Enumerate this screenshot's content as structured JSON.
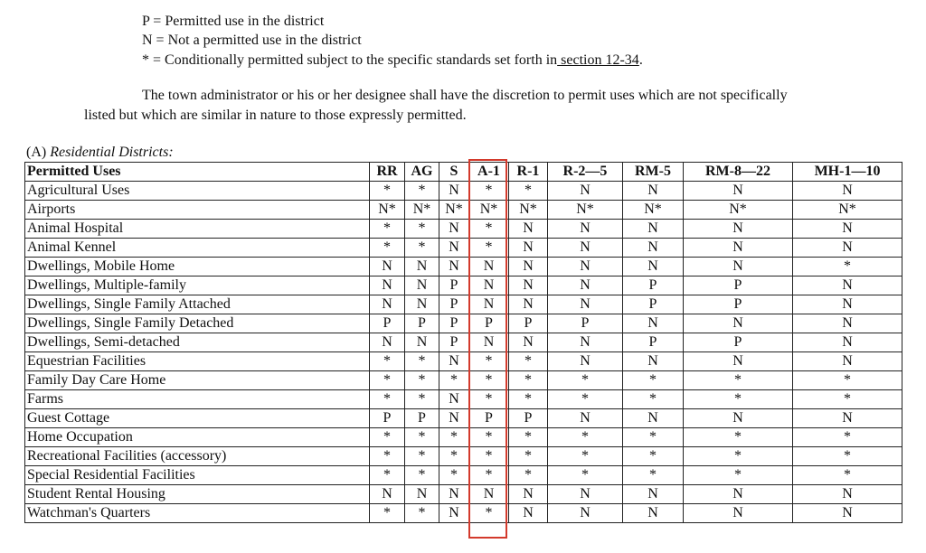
{
  "legend": [
    {
      "text": "P = Permitted use in the district"
    },
    {
      "text": "N = Not a permitted use in the district"
    },
    {
      "text": "* = Conditionally permitted subject to the specific standards set forth in",
      "link": " section 12-34",
      "tail": "."
    }
  ],
  "paragraph": {
    "line1": "The town administrator or his or her designee shall have the discretion to permit uses which are not specifically",
    "line2": "listed but which are similar in nature to those expressly permitted."
  },
  "section": {
    "prefix": "(A) ",
    "title": "Residential Districts:"
  },
  "table": {
    "headers": [
      "Permitted Uses",
      "RR",
      "AG",
      "S",
      "A-1",
      "R-1",
      "R-2—5",
      "RM-5",
      "RM-8—22",
      "MH-1—10"
    ],
    "highlight_column": "A-1",
    "highlight_color": "#d33a2c",
    "rows": [
      [
        "Agricultural Uses",
        "*",
        "*",
        "N",
        "*",
        "*",
        "N",
        "N",
        "N",
        "N"
      ],
      [
        "Airports",
        "N*",
        "N*",
        "N*",
        "N*",
        "N*",
        "N*",
        "N*",
        "N*",
        "N*"
      ],
      [
        "Animal Hospital",
        "*",
        "*",
        "N",
        "*",
        "N",
        "N",
        "N",
        "N",
        "N"
      ],
      [
        "Animal Kennel",
        "*",
        "*",
        "N",
        "*",
        "N",
        "N",
        "N",
        "N",
        "N"
      ],
      [
        "Dwellings, Mobile Home",
        "N",
        "N",
        "N",
        "N",
        "N",
        "N",
        "N",
        "N",
        "*"
      ],
      [
        "Dwellings, Multiple-family",
        "N",
        "N",
        "P",
        "N",
        "N",
        "N",
        "P",
        "P",
        "N"
      ],
      [
        "Dwellings, Single Family Attached",
        "N",
        "N",
        "P",
        "N",
        "N",
        "N",
        "P",
        "P",
        "N"
      ],
      [
        "Dwellings, Single Family Detached",
        "P",
        "P",
        "P",
        "P",
        "P",
        "P",
        "N",
        "N",
        "N"
      ],
      [
        "Dwellings, Semi-detached",
        "N",
        "N",
        "P",
        "N",
        "N",
        "N",
        "P",
        "P",
        "N"
      ],
      [
        "Equestrian Facilities",
        "*",
        "*",
        "N",
        "*",
        "*",
        "N",
        "N",
        "N",
        "N"
      ],
      [
        "Family Day Care Home",
        "*",
        "*",
        "*",
        "*",
        "*",
        "*",
        "*",
        "*",
        "*"
      ],
      [
        "Farms",
        "*",
        "*",
        "N",
        "*",
        "*",
        "*",
        "*",
        "*",
        "*"
      ],
      [
        "Guest Cottage",
        "P",
        "P",
        "N",
        "P",
        "P",
        "N",
        "N",
        "N",
        "N"
      ],
      [
        "Home Occupation",
        "*",
        "*",
        "*",
        "*",
        "*",
        "*",
        "*",
        "*",
        "*"
      ],
      [
        "Recreational Facilities (accessory)",
        "*",
        "*",
        "*",
        "*",
        "*",
        "*",
        "*",
        "*",
        "*"
      ],
      [
        "Special Residential Facilities",
        "*",
        "*",
        "*",
        "*",
        "*",
        "*",
        "*",
        "*",
        "*"
      ],
      [
        "Student Rental Housing",
        "N",
        "N",
        "N",
        "N",
        "N",
        "N",
        "N",
        "N",
        "N"
      ],
      [
        "Watchman's Quarters",
        "*",
        "*",
        "N",
        "*",
        "N",
        "N",
        "N",
        "N",
        "N"
      ]
    ]
  }
}
